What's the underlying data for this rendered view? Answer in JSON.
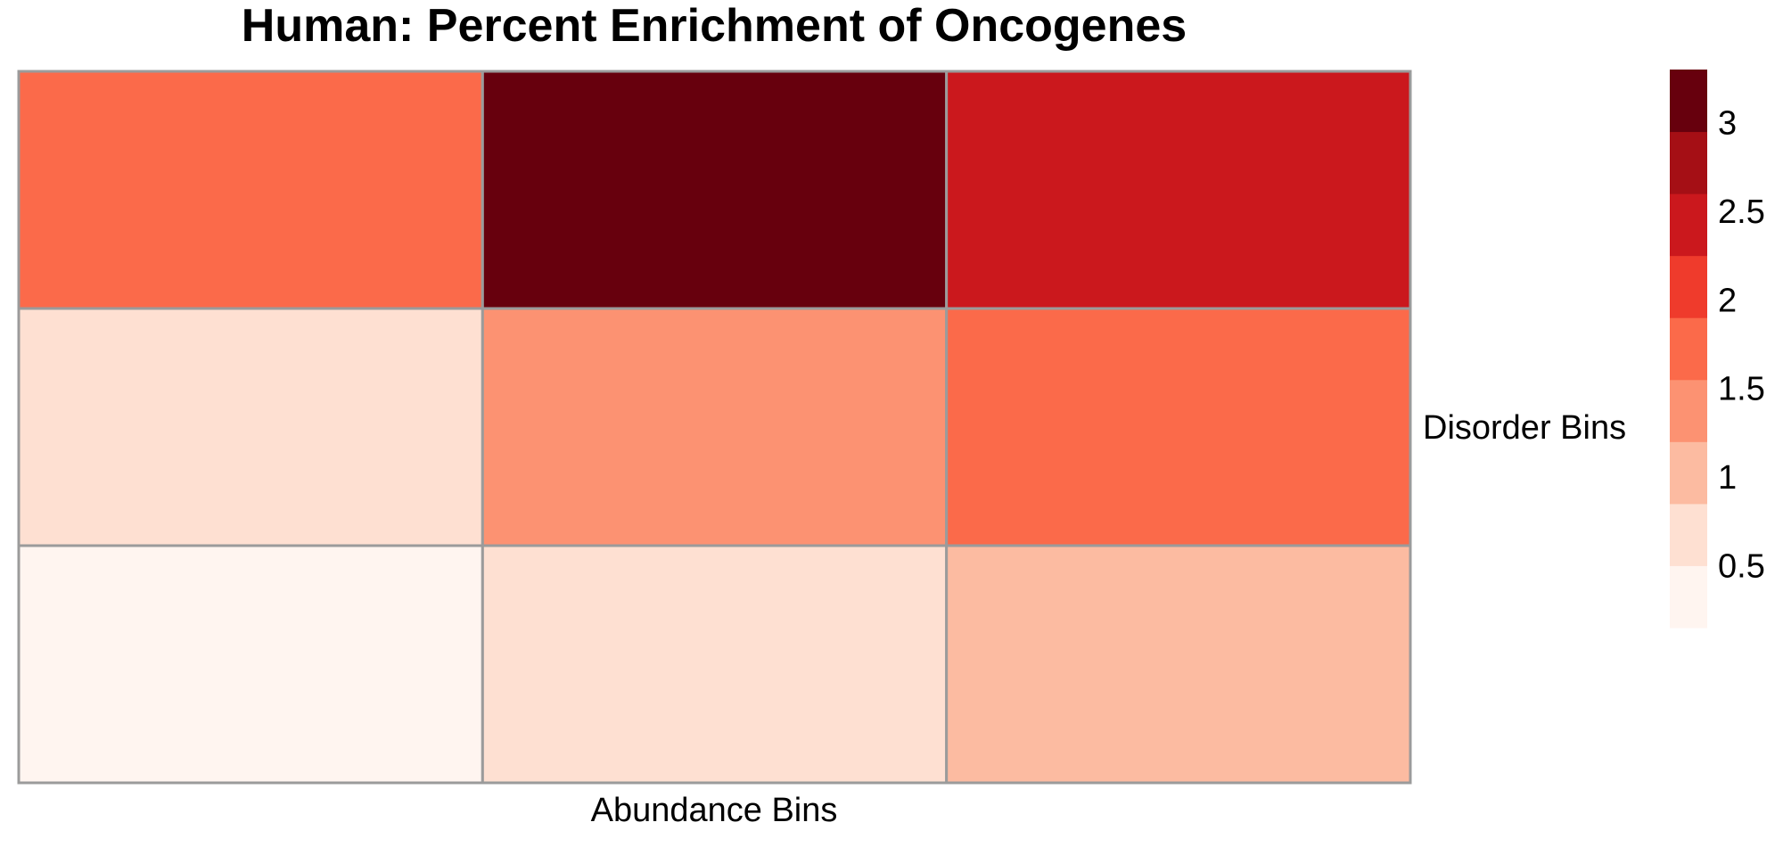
{
  "chart_data": {
    "type": "heatmap",
    "title": "Human: Percent Enrichment of Oncogenes",
    "xlabel": "Abundance Bins",
    "ylabel": "Disorder Bins",
    "rows": 3,
    "cols": 3,
    "values": [
      [
        1.6,
        3.2,
        2.5
      ],
      [
        0.8,
        1.4,
        1.6
      ],
      [
        0.4,
        0.8,
        1.1
      ]
    ],
    "grid": true,
    "legend": {
      "placement": "right",
      "ticks": [
        "3",
        "2.5",
        "2",
        "1.5",
        "1",
        "0.5"
      ],
      "tick_values": [
        3,
        2.5,
        2,
        1.5,
        1,
        0.5
      ],
      "range": [
        0.15,
        3.3
      ],
      "bins": [
        {
          "from": 0.15,
          "to": 0.5,
          "color": "#fff5f0"
        },
        {
          "from": 0.5,
          "to": 0.85,
          "color": "#fee0d2"
        },
        {
          "from": 0.85,
          "to": 1.2,
          "color": "#fcbba1"
        },
        {
          "from": 1.2,
          "to": 1.55,
          "color": "#fc9272"
        },
        {
          "from": 1.55,
          "to": 1.9,
          "color": "#fb6a4a"
        },
        {
          "from": 1.9,
          "to": 2.25,
          "color": "#ef3b2c"
        },
        {
          "from": 2.25,
          "to": 2.6,
          "color": "#cb181d"
        },
        {
          "from": 2.6,
          "to": 2.95,
          "color": "#a50f15"
        },
        {
          "from": 2.95,
          "to": 3.3,
          "color": "#67000d"
        }
      ]
    }
  }
}
